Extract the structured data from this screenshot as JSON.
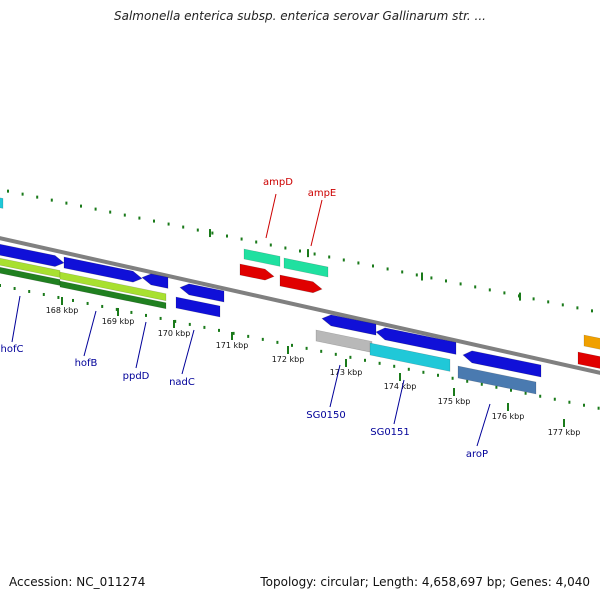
{
  "title": "Salmonella enterica subsp. enterica serovar Gallinarum str. ...",
  "footer": {
    "accession": "Accession: NC_011274",
    "summary": "Topology: circular; Length: 4,658,697 bp; Genes: 4,040"
  },
  "ticks": [
    {
      "label": "168 kbp"
    },
    {
      "label": "169 kbp"
    },
    {
      "label": "170 kbp"
    },
    {
      "label": "171 kbp"
    },
    {
      "label": "172 kbp"
    },
    {
      "label": "173 kbp"
    },
    {
      "label": "174 kbp"
    },
    {
      "label": "175 kbp"
    },
    {
      "label": "176 kbp"
    },
    {
      "label": "177 kbp"
    }
  ],
  "genes": [
    {
      "name": "hofC",
      "color": "#000099"
    },
    {
      "name": "hofB",
      "color": "#000099"
    },
    {
      "name": "ppdD",
      "color": "#000099"
    },
    {
      "name": "nadC",
      "color": "#000099"
    },
    {
      "name": "ampD",
      "color": "#cc0000"
    },
    {
      "name": "ampE",
      "color": "#cc0000"
    },
    {
      "name": "SG0150",
      "color": "#000099"
    },
    {
      "name": "SG0151",
      "color": "#000099"
    },
    {
      "name": "aroP",
      "color": "#000099"
    }
  ],
  "colors": {
    "backbone": "#808080",
    "tick": "#1a7a1a",
    "cds_blue": "#1010d8",
    "cds_red": "#e00000",
    "cds_teal": "#20e0a0",
    "cds_cyan": "#20c8d8",
    "cds_grey": "#b8b8b8",
    "cds_steel": "#4a7ab0",
    "cds_green_light": "#a8e030",
    "cds_green_dark": "#208020",
    "cds_orange": "#f0a000"
  }
}
